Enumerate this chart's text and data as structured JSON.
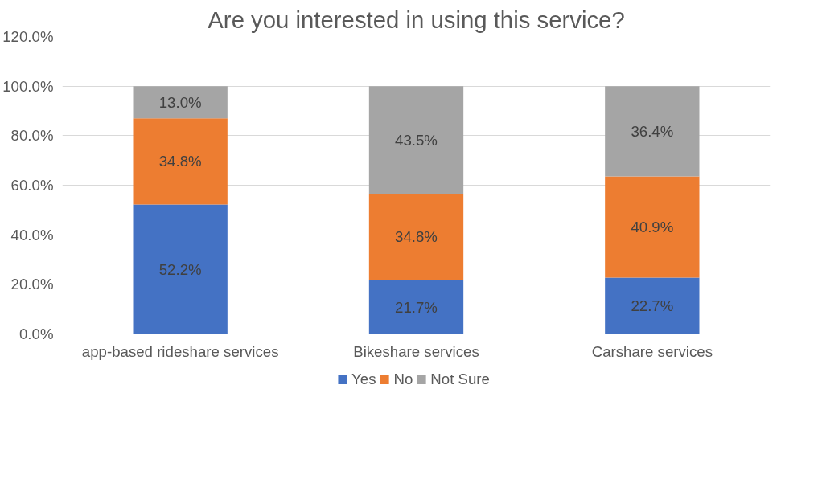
{
  "chart_data": {
    "type": "bar",
    "stacked": true,
    "title": "Are you interested in using this service?",
    "categories": [
      "app-based rideshare services",
      "Bikeshare services",
      "Carshare services"
    ],
    "series": [
      {
        "name": "Yes",
        "color": "#4472c4",
        "values": [
          52.2,
          21.7,
          22.7
        ],
        "value_labels": [
          "52.2%",
          "21.7%",
          "22.7%"
        ]
      },
      {
        "name": "No",
        "color": "#ed7d31",
        "values": [
          34.8,
          34.8,
          40.9
        ],
        "value_labels": [
          "34.8%",
          "34.8%",
          "40.9%"
        ]
      },
      {
        "name": "Not Sure",
        "color": "#a5a5a5",
        "values": [
          13.0,
          43.5,
          36.4
        ],
        "value_labels": [
          "13.0%",
          "43.5%",
          "36.4%"
        ]
      }
    ],
    "ylim": [
      0,
      120
    ],
    "yticks": [
      {
        "value": 0,
        "label": "0.0%"
      },
      {
        "value": 20,
        "label": "20.0%"
      },
      {
        "value": 40,
        "label": "40.0%"
      },
      {
        "value": 60,
        "label": "60.0%"
      },
      {
        "value": 80,
        "label": "80.0%"
      },
      {
        "value": 100,
        "label": "100.0%"
      },
      {
        "value": 120,
        "label": "120.0%"
      }
    ],
    "grid": "y",
    "legend": "bottom"
  }
}
